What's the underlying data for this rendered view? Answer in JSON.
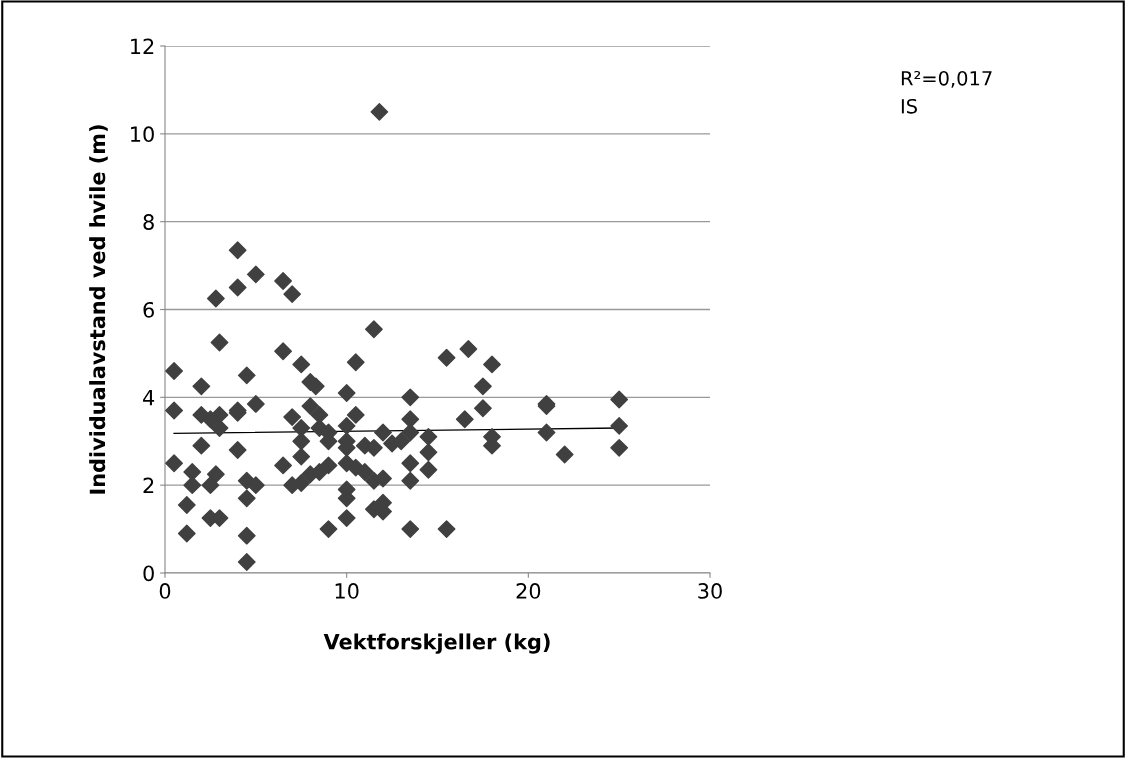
{
  "chart_data": {
    "type": "scatter",
    "xlabel": "Vektforskjeller (kg)",
    "ylabel": "Individualavstand ved hvile (m)",
    "xlim": [
      0,
      30
    ],
    "xticks": [
      0,
      10,
      20,
      30
    ],
    "ylim": [
      0,
      12
    ],
    "yticks": [
      0,
      2,
      4,
      6,
      8,
      10,
      12
    ],
    "grid": "y",
    "marker": "diamond",
    "legend": false,
    "annotations": [
      "R²=0,017",
      "IS"
    ],
    "series": [
      {
        "color": "#404040",
        "x": [
          0.5,
          0.5,
          0.5,
          1.2,
          1.2,
          1.5,
          1.5,
          2,
          2,
          2,
          2.5,
          2.5,
          2.5,
          2.8,
          2.8,
          3,
          3,
          3,
          3,
          4,
          4,
          4,
          4,
          4,
          4.5,
          4.5,
          4.5,
          4.5,
          4.5,
          5,
          5,
          5,
          6.5,
          6.5,
          6.5,
          7,
          7,
          7,
          7.5,
          7.5,
          7.5,
          7.5,
          7.5,
          8,
          8,
          8,
          8.3,
          8.5,
          8.5,
          8.5,
          9,
          9,
          9,
          9,
          10,
          10,
          10,
          10,
          10,
          10,
          10,
          10,
          10.5,
          10.5,
          10.5,
          11,
          11,
          11.5,
          11.5,
          11.5,
          11.5,
          11.8,
          12,
          12,
          12,
          12,
          12.5,
          13,
          13.5,
          13.5,
          13.5,
          13.5,
          13.5,
          13.5,
          14.5,
          14.5,
          14.5,
          15.5,
          15.5,
          16.7,
          16.5,
          17.5,
          17.5,
          18,
          18,
          18,
          21,
          21,
          21,
          22,
          25,
          25,
          25
        ],
        "values": [
          4.6,
          3.7,
          2.5,
          0.9,
          1.55,
          2.3,
          2.0,
          4.25,
          3.6,
          2.9,
          3.5,
          2.0,
          1.25,
          6.25,
          2.25,
          3.6,
          3.3,
          5.25,
          1.25,
          7.35,
          6.5,
          3.7,
          3.65,
          2.8,
          4.5,
          2.1,
          1.7,
          0.85,
          0.25,
          6.8,
          3.85,
          2.0,
          6.65,
          5.05,
          2.45,
          6.35,
          3.55,
          2.0,
          4.75,
          3.3,
          3.0,
          2.65,
          2.05,
          4.35,
          3.8,
          2.25,
          4.25,
          3.6,
          3.3,
          2.3,
          3.2,
          3.0,
          2.45,
          1.0,
          4.1,
          3.35,
          3.0,
          2.85,
          2.5,
          1.9,
          1.7,
          1.25,
          4.8,
          3.6,
          2.4,
          2.9,
          2.3,
          5.55,
          2.85,
          2.1,
          1.45,
          10.5,
          3.2,
          1.6,
          2.15,
          1.4,
          2.95,
          3.0,
          4.0,
          3.5,
          3.2,
          2.5,
          2.1,
          1.0,
          3.1,
          2.75,
          2.35,
          4.9,
          1.0,
          5.1,
          3.5,
          4.25,
          3.75,
          4.75,
          3.1,
          2.9,
          3.85,
          3.8,
          3.2,
          2.7,
          3.95,
          3.35,
          2.85
        ]
      },
      {
        "type": "line",
        "color": "#000000",
        "marker": "none",
        "line_style": "solid",
        "x": [
          0.5,
          25
        ],
        "values": [
          3.18,
          3.3
        ]
      }
    ]
  }
}
